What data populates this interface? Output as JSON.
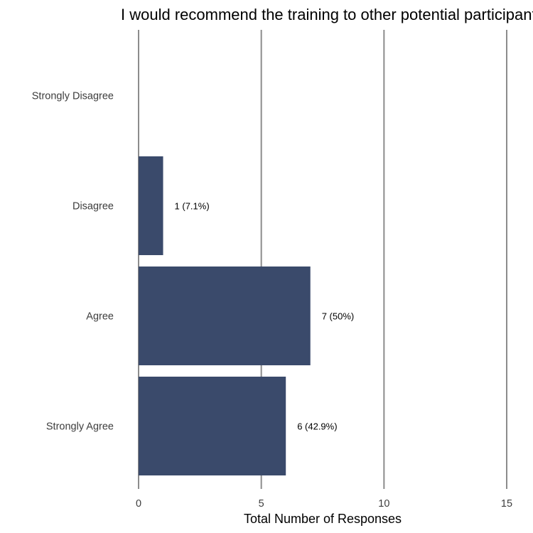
{
  "chart_data": {
    "type": "bar",
    "orientation": "horizontal",
    "title": "I would recommend the training to other potential participants",
    "xlabel": "Total Number of Responses",
    "ylabel": "",
    "categories": [
      "Strongly Disagree",
      "Disagree",
      "Agree",
      "Strongly Agree"
    ],
    "values": [
      0,
      1,
      7,
      6
    ],
    "data_labels": [
      "",
      "1 (7.1%)",
      "7 (50%)",
      "6 (42.9%)"
    ],
    "xlim": [
      0,
      15
    ],
    "xticks": [
      "0",
      "5",
      "10",
      "15"
    ],
    "grid": true,
    "legend": "none",
    "bar_color": "#3a4a6b",
    "grid_color": "#8c8c8c"
  }
}
